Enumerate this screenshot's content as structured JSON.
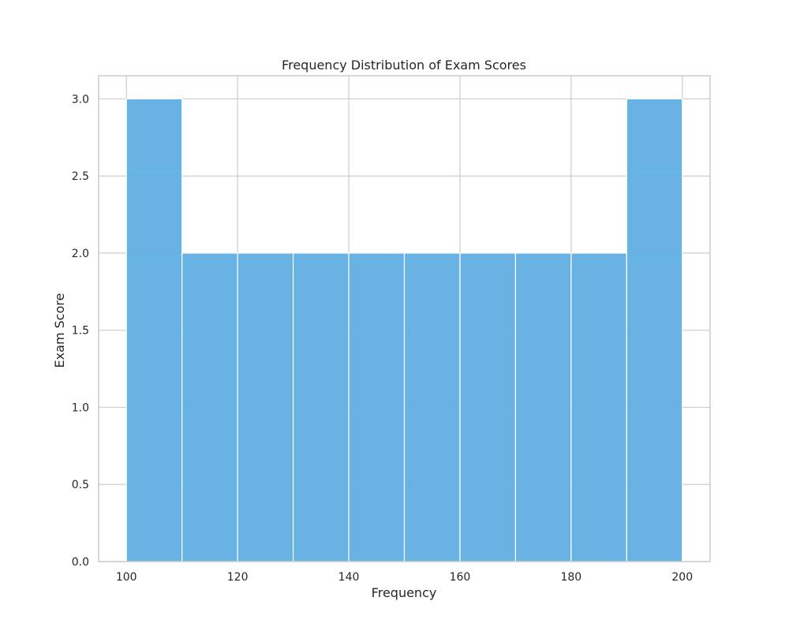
{
  "chart_data": {
    "type": "bar",
    "title": "Frequency Distribution of Exam Scores",
    "xlabel": "Frequency",
    "ylabel": "Exam Score",
    "bins": [
      {
        "start": 100,
        "end": 110,
        "count": 3
      },
      {
        "start": 110,
        "end": 120,
        "count": 2
      },
      {
        "start": 120,
        "end": 130,
        "count": 2
      },
      {
        "start": 130,
        "end": 140,
        "count": 2
      },
      {
        "start": 140,
        "end": 150,
        "count": 2
      },
      {
        "start": 150,
        "end": 160,
        "count": 2
      },
      {
        "start": 160,
        "end": 170,
        "count": 2
      },
      {
        "start": 170,
        "end": 180,
        "count": 2
      },
      {
        "start": 180,
        "end": 190,
        "count": 2
      },
      {
        "start": 190,
        "end": 200,
        "count": 3
      }
    ],
    "xlim": [
      95,
      205
    ],
    "ylim": [
      0,
      3.15
    ],
    "xticks": [
      100,
      120,
      140,
      160,
      180,
      200
    ],
    "yticks": [
      "0.0",
      "0.5",
      "1.0",
      "1.5",
      "2.0",
      "2.5",
      "3.0"
    ],
    "grid": true,
    "colors": {
      "bar": "#5DADE2",
      "bar_edge": "#ffffff",
      "grid": "#cccccc",
      "spine": "#cccccc",
      "text": "#262626"
    }
  }
}
